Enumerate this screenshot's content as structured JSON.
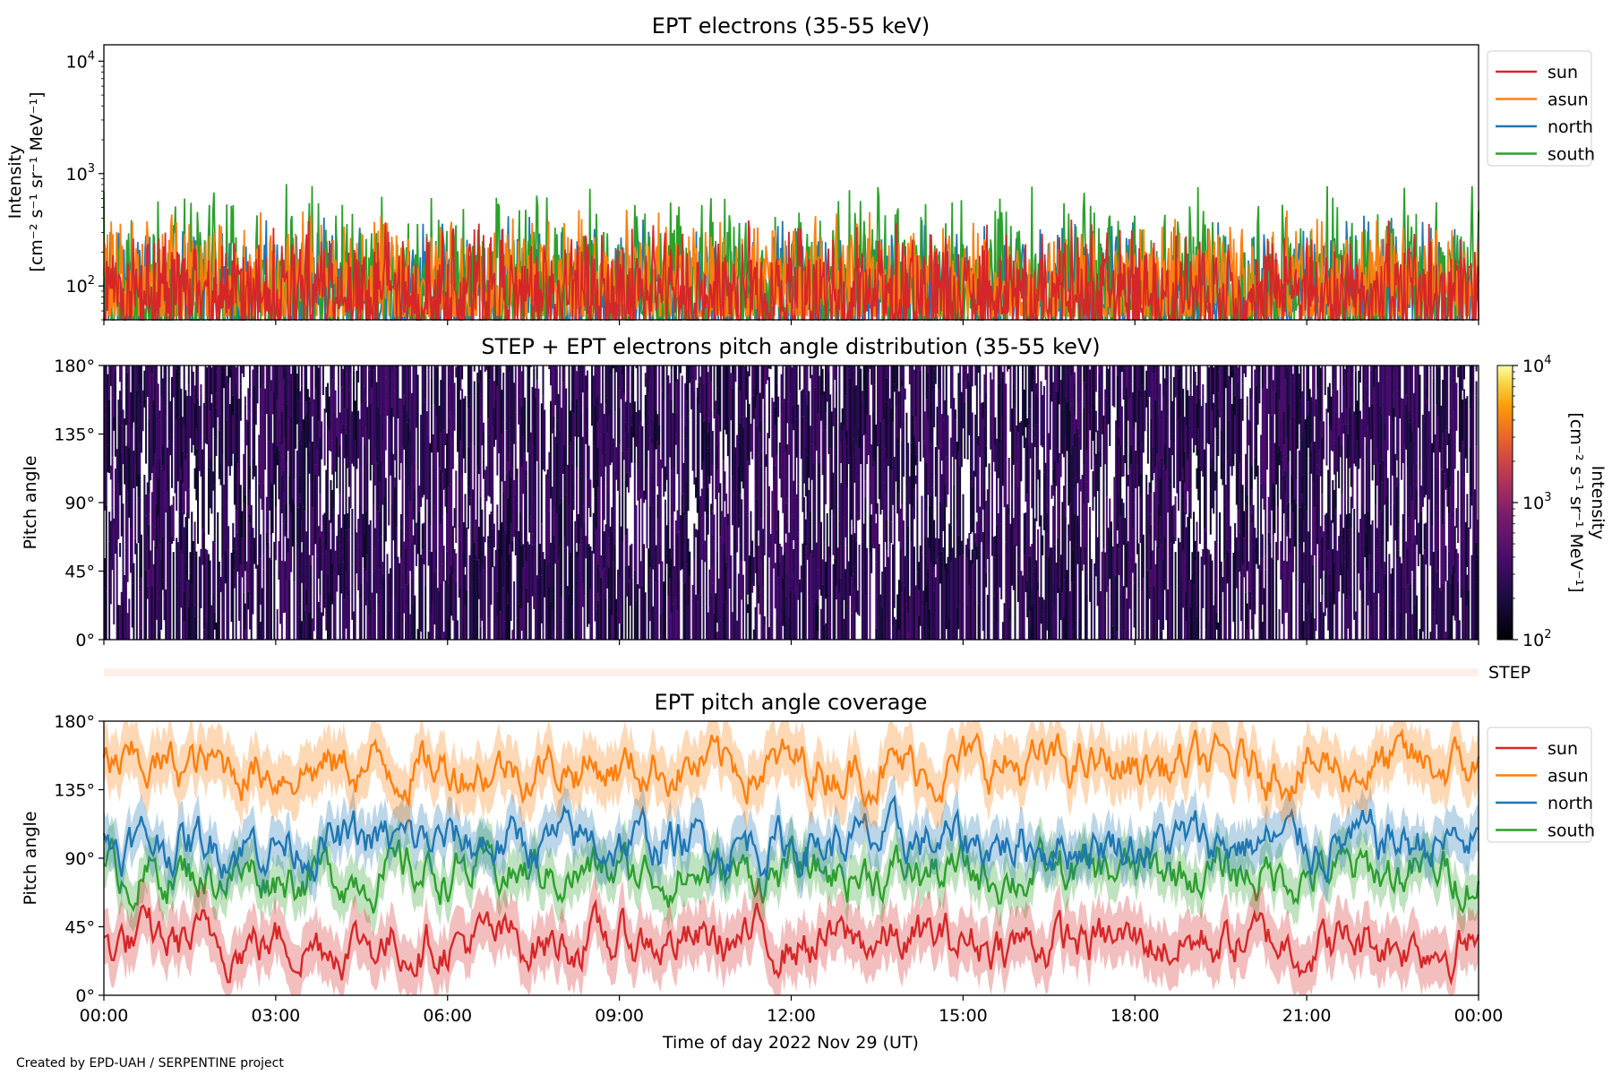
{
  "figure": {
    "credit": "Created by EPD-UAH / SERPENTINE project",
    "xlabel": "Time of day 2022 Nov 29 (UT)",
    "x_ticks": [
      "00:00",
      "03:00",
      "06:00",
      "09:00",
      "12:00",
      "15:00",
      "18:00",
      "21:00",
      "00:00"
    ],
    "step_label": "STEP"
  },
  "colors": {
    "sun": "#d62728",
    "asun": "#ff7f0e",
    "north": "#1f77b4",
    "south": "#2ca02c"
  },
  "chart_data": [
    {
      "type": "line",
      "title": "EPT electrons (35-55 keV)",
      "ylabel": "Intensity",
      "yunit": "[cm⁻² s⁻¹ sr⁻¹ MeV⁻¹]",
      "yscale": "log",
      "ylim": [
        50,
        14000
      ],
      "y_ticks": [
        {
          "value": 100,
          "base": "10",
          "exp": "2"
        },
        {
          "value": 1000,
          "base": "10",
          "exp": "3"
        },
        {
          "value": 10000,
          "base": "10",
          "exp": "4"
        }
      ],
      "xlim_hours": [
        0,
        24
      ],
      "legend": "upper-right-outside",
      "series": [
        {
          "name": "sun",
          "color_key": "sun",
          "typical": 130,
          "spread_lo": 55,
          "spread_hi": 420
        },
        {
          "name": "asun",
          "color_key": "asun",
          "typical": 170,
          "spread_lo": 60,
          "spread_hi": 550
        },
        {
          "name": "north",
          "color_key": "north",
          "typical": 150,
          "spread_lo": 55,
          "spread_hi": 480
        },
        {
          "name": "south",
          "color_key": "south",
          "typical": 150,
          "spread_lo": 55,
          "spread_hi": 900
        }
      ]
    },
    {
      "type": "heatmap",
      "title": "STEP + EPT electrons pitch angle distribution (35-55 keV)",
      "ylabel": "Pitch angle",
      "y_ticks": [
        "0°",
        "45°",
        "90°",
        "135°",
        "180°"
      ],
      "y_tick_values": [
        0,
        45,
        90,
        135,
        180
      ],
      "ylim": [
        0,
        180
      ],
      "xlim_hours": [
        0,
        24
      ],
      "colorbar": {
        "label": "Intensity",
        "unit": "[cm⁻² s⁻¹ sr⁻¹ MeV⁻¹]",
        "scale": "log",
        "range": [
          100,
          10000
        ],
        "colormap": "inferno",
        "ticks": [
          {
            "value": 100,
            "base": "10",
            "exp": "2"
          },
          {
            "value": 1000,
            "base": "10",
            "exp": "3"
          },
          {
            "value": 10000,
            "base": "10",
            "exp": "4"
          }
        ]
      },
      "typical_intensity": 150
    },
    {
      "type": "line",
      "title": "EPT pitch angle coverage",
      "ylabel": "Pitch angle",
      "y_ticks": [
        "0°",
        "45°",
        "90°",
        "135°",
        "180°"
      ],
      "y_tick_values": [
        0,
        45,
        90,
        135,
        180
      ],
      "ylim": [
        0,
        180
      ],
      "xlim_hours": [
        0,
        24
      ],
      "legend": "upper-right-outside",
      "series": [
        {
          "name": "sun",
          "color_key": "sun",
          "mean": 35,
          "band": 18
        },
        {
          "name": "asun",
          "color_key": "asun",
          "mean": 150,
          "band": 18
        },
        {
          "name": "north",
          "color_key": "north",
          "mean": 100,
          "band": 15
        },
        {
          "name": "south",
          "color_key": "south",
          "mean": 80,
          "band": 15
        }
      ]
    }
  ]
}
